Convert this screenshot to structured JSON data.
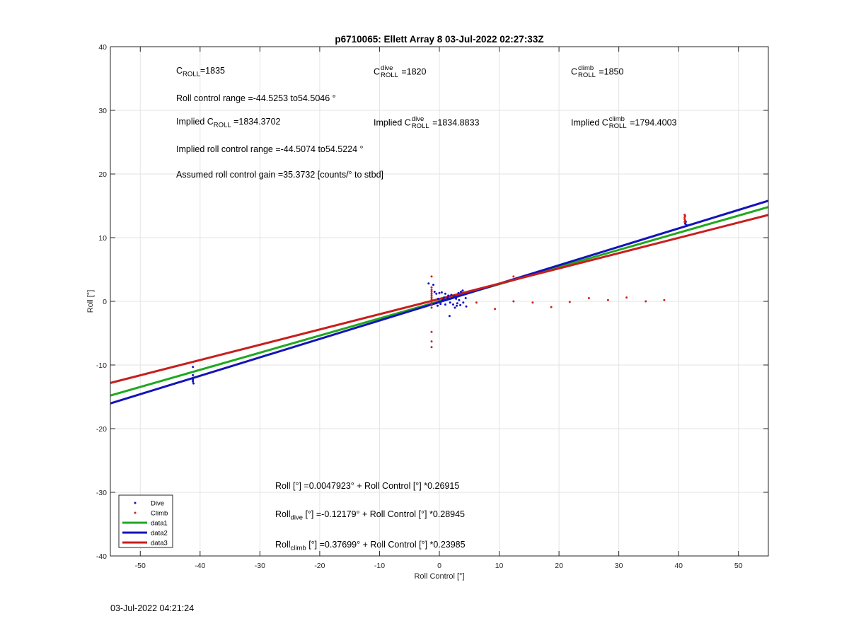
{
  "chart_data": {
    "type": "scatter",
    "title": "p6710065: Ellett Array 8 03-Jul-2022 02:27:33Z",
    "xlabel": "Roll Control [°]",
    "ylabel": "Roll [°]",
    "xlim": [
      -55,
      55
    ],
    "ylim": [
      -40,
      40
    ],
    "xticks": [
      -50,
      -40,
      -30,
      -20,
      -10,
      0,
      10,
      20,
      30,
      40,
      50
    ],
    "yticks": [
      -40,
      -30,
      -20,
      -10,
      0,
      10,
      20,
      30,
      40
    ],
    "grid": true,
    "legend_position": "bottom-left",
    "legend": [
      "Dive",
      "Climb",
      "data1",
      "data2",
      "data3"
    ],
    "series": [
      {
        "name": "Dive",
        "kind": "points",
        "color": "#1010c8",
        "points": [
          [
            -41.2,
            -10.3
          ],
          [
            -41.2,
            -11.6
          ],
          [
            -41.1,
            -12.0
          ],
          [
            -41.2,
            -12.3
          ],
          [
            -41.2,
            -12.6
          ],
          [
            -41.1,
            -12.9
          ],
          [
            -1.8,
            2.8
          ],
          [
            -1.0,
            2.6
          ],
          [
            -0.8,
            1.5
          ],
          [
            -0.5,
            1.2
          ],
          [
            0.0,
            1.3
          ],
          [
            0.4,
            1.4
          ],
          [
            1.0,
            1.2
          ],
          [
            0.8,
            0.6
          ],
          [
            1.5,
            0.9
          ],
          [
            2.0,
            1.0
          ],
          [
            2.5,
            0.8
          ],
          [
            3.2,
            1.3
          ],
          [
            3.6,
            1.5
          ],
          [
            3.9,
            1.7
          ],
          [
            0.0,
            0.0
          ],
          [
            0.5,
            0.2
          ],
          [
            1.2,
            0.3
          ],
          [
            1.8,
            -0.2
          ],
          [
            2.3,
            -0.5
          ],
          [
            3.0,
            -0.3
          ],
          [
            3.5,
            -0.6
          ],
          [
            4.0,
            -0.2
          ],
          [
            4.4,
            0.5
          ],
          [
            4.5,
            -0.8
          ],
          [
            -0.5,
            -0.3
          ],
          [
            0.2,
            -0.4
          ],
          [
            1.0,
            -0.5
          ],
          [
            1.7,
            -2.3
          ],
          [
            2.6,
            -1.0
          ],
          [
            2.9,
            -0.7
          ],
          [
            -0.3,
            -0.7
          ],
          [
            2.8,
            0.4
          ],
          [
            2.1,
            0.5
          ],
          [
            1.4,
            0.6
          ],
          [
            0.7,
            0.3
          ],
          [
            -0.2,
            0.4
          ],
          [
            3.3,
            0.2
          ],
          [
            41.1,
            12.2
          ],
          [
            41.2,
            12.5
          ],
          [
            41.3,
            12.0
          ]
        ]
      },
      {
        "name": "Climb",
        "kind": "points",
        "color": "#d42020",
        "points": [
          [
            -1.3,
            3.9
          ],
          [
            -1.3,
            2.2
          ],
          [
            -1.3,
            1.8
          ],
          [
            -1.3,
            1.5
          ],
          [
            -1.3,
            1.2
          ],
          [
            -1.3,
            0.9
          ],
          [
            -1.3,
            0.6
          ],
          [
            -1.3,
            0.3
          ],
          [
            -1.3,
            0.0
          ],
          [
            -1.3,
            -0.3
          ],
          [
            -1.3,
            -0.6
          ],
          [
            -1.3,
            -1.0
          ],
          [
            -1.3,
            -4.8
          ],
          [
            -1.3,
            -6.3
          ],
          [
            -1.3,
            -7.2
          ],
          [
            6.2,
            -0.2
          ],
          [
            9.3,
            -1.2
          ],
          [
            12.4,
            3.9
          ],
          [
            12.4,
            0.0
          ],
          [
            15.6,
            -0.2
          ],
          [
            18.7,
            -0.9
          ],
          [
            21.8,
            -0.1
          ],
          [
            25.0,
            0.5
          ],
          [
            28.2,
            0.2
          ],
          [
            31.3,
            0.6
          ],
          [
            34.5,
            0.0
          ],
          [
            37.6,
            0.2
          ],
          [
            41.0,
            12.5
          ],
          [
            41.0,
            12.9
          ],
          [
            41.0,
            13.2
          ],
          [
            41.0,
            13.6
          ],
          [
            41.1,
            12.7
          ],
          [
            41.1,
            13.4
          ]
        ]
      },
      {
        "name": "data1",
        "kind": "line",
        "color": "#1fa81f",
        "x": [
          -55,
          55
        ],
        "y": [
          -14.8,
          14.81
        ]
      },
      {
        "name": "data2",
        "kind": "line",
        "color": "#1414b8",
        "x": [
          -55,
          55
        ],
        "y": [
          -16.04,
          15.8
        ]
      },
      {
        "name": "data3",
        "kind": "line",
        "color": "#c81e1e",
        "x": [
          -55,
          55
        ],
        "y": [
          -12.82,
          13.57
        ]
      }
    ]
  },
  "annotations": {
    "c_roll": {
      "pre": "C",
      "sub": "ROLL",
      "post": "=1835"
    },
    "c_roll_dive": {
      "pre": "C",
      "sup": "dive",
      "sub": "ROLL",
      "post": " =1820"
    },
    "c_roll_climb": {
      "pre": "C",
      "sup": "climb",
      "sub": "ROLL",
      "post": " =1850"
    },
    "range": "Roll control range =-44.5253 to54.5046 °",
    "implied": {
      "pre": "Implied C",
      "sub": "ROLL",
      "post": " =1834.3702"
    },
    "implied_dive": {
      "pre": "Implied C",
      "sup": "dive",
      "sub": "ROLL",
      "post": " =1834.8833"
    },
    "implied_climb": {
      "pre": "Implied C",
      "sup": "climb",
      "sub": "ROLL",
      "post": " =1794.4003"
    },
    "implied_range": "Implied roll control range =-44.5074 to54.5224 °",
    "gain": "Assumed roll control gain =35.3732 [counts/° to stbd]",
    "fit_all": "Roll [°] =0.0047923° + Roll Control [°] *0.26915",
    "fit_dive": {
      "pre": "Roll",
      "sub": "dive",
      "post": " [°] =-0.12179° + Roll Control [°] *0.28945"
    },
    "fit_climb": {
      "pre": "Roll",
      "sub": "climb",
      "post": " [°] =0.37699° + Roll Control [°] *0.23985"
    }
  },
  "footer": "03-Jul-2022 04:21:24"
}
